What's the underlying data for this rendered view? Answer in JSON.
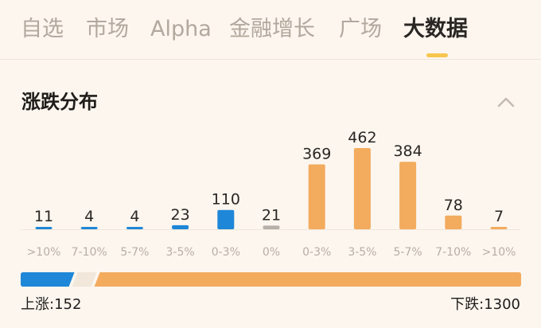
{
  "tabs": [
    {
      "label": "自选"
    },
    {
      "label": "市场"
    },
    {
      "label": "Alpha"
    },
    {
      "label": "金融增长"
    },
    {
      "label": "广场"
    },
    {
      "label": "大数据",
      "active": true
    }
  ],
  "section": {
    "title": "涨跌分布",
    "collapse_icon": "chevron-up-icon"
  },
  "chart_data": {
    "type": "bar",
    "categories": [
      ">10%",
      "7-10%",
      "5-7%",
      "3-5%",
      "0-3%",
      "0%",
      "0-3%",
      "3-5%",
      "5-7%",
      "7-10%",
      ">10%"
    ],
    "values": [
      11,
      4,
      4,
      23,
      110,
      21,
      369,
      462,
      384,
      78,
      7
    ],
    "colors": [
      "#1f87d8",
      "#1f87d8",
      "#1f87d8",
      "#1f87d8",
      "#1f87d8",
      "#b5b0aa",
      "#f3ab5e",
      "#f3ab5e",
      "#f3ab5e",
      "#f3ab5e",
      "#f3ab5e"
    ],
    "title": "",
    "xlabel": "",
    "ylabel": "",
    "ylim": [
      0,
      462
    ],
    "grid": false,
    "legend": "none"
  },
  "summary": {
    "up_label": "上涨:152",
    "down_label": "下跌:1300",
    "up_count": 152,
    "flat_count": 21,
    "down_count": 1300,
    "up_color": "#1f87d8",
    "flat_color": "#f1e7da",
    "down_color": "#f3ab5e"
  }
}
